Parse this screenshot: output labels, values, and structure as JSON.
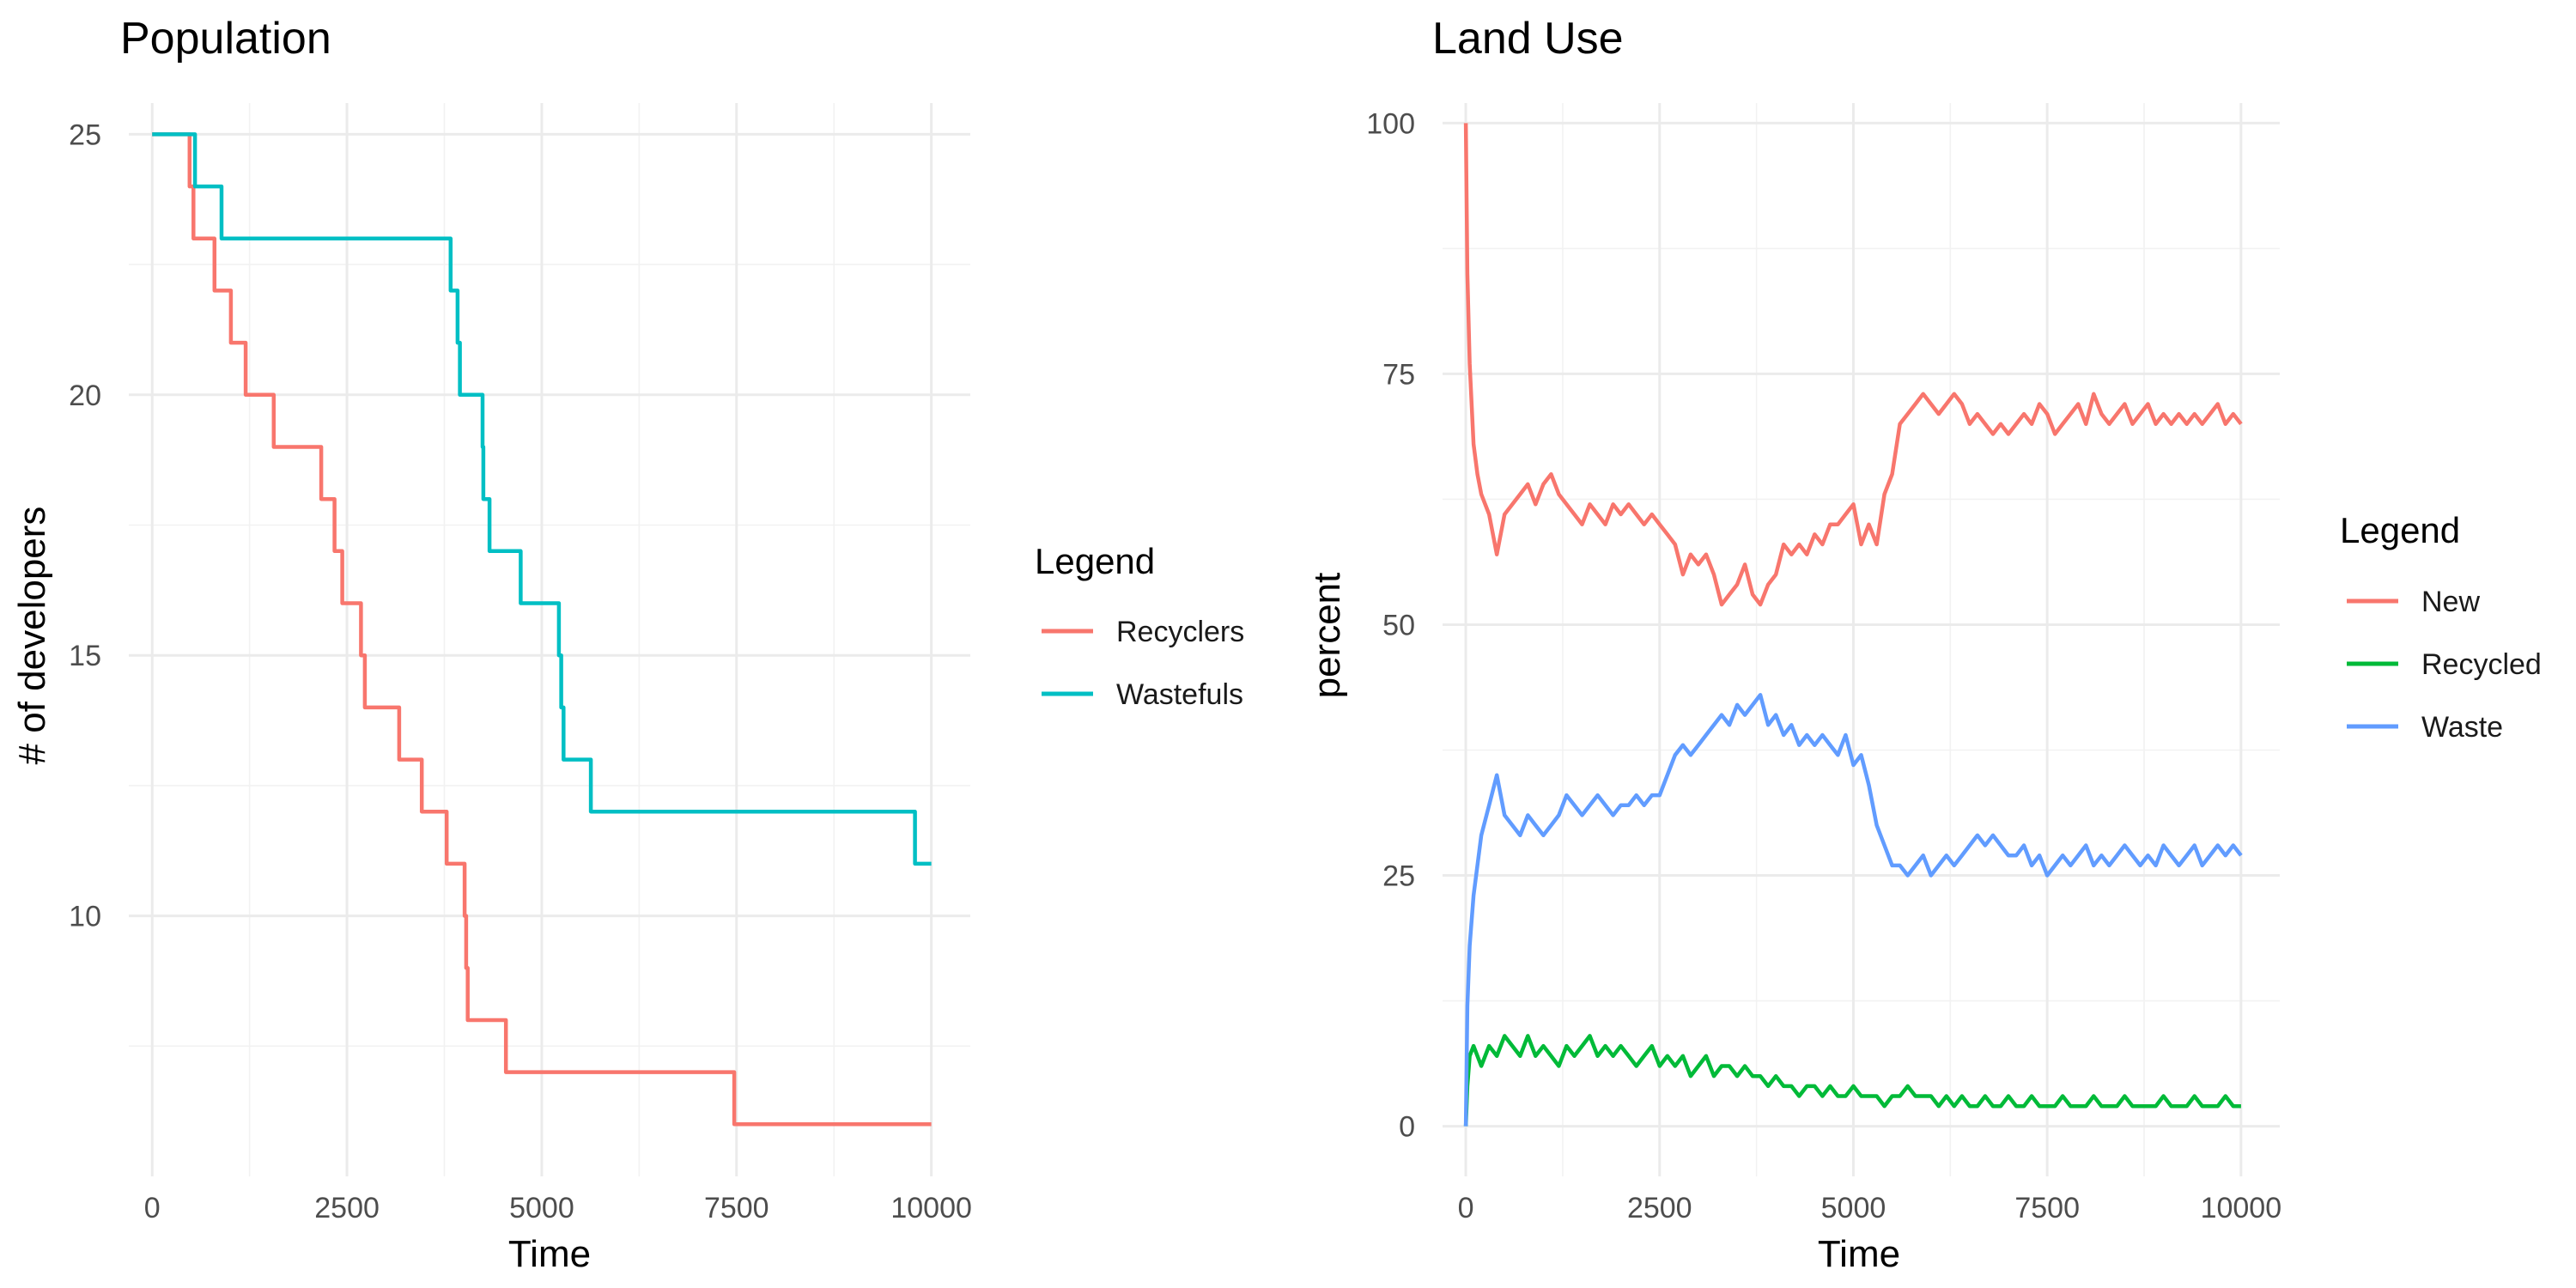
{
  "chart_data": [
    {
      "type": "line",
      "title": "Population",
      "xlabel": "Time",
      "ylabel": "# of developers",
      "xlim": [
        -300,
        10500
      ],
      "ylim": [
        5,
        25.6
      ],
      "x_ticks": [
        0,
        2500,
        5000,
        7500,
        10000
      ],
      "x_tick_labels": [
        "0",
        "2500",
        "5000",
        "7500",
        "10000"
      ],
      "y_ticks": [
        10,
        15,
        20,
        25
      ],
      "y_tick_labels": [
        "10",
        "15",
        "20",
        "25"
      ],
      "grid": true,
      "legend": {
        "title": "Legend",
        "position": "right"
      },
      "series": [
        {
          "name": "Recyclers",
          "color": "#F8766D",
          "step": true,
          "points": [
            [
              0,
              25
            ],
            [
              480,
              25
            ],
            [
              480,
              24
            ],
            [
              530,
              24
            ],
            [
              530,
              23
            ],
            [
              800,
              23
            ],
            [
              800,
              22
            ],
            [
              1010,
              22
            ],
            [
              1010,
              21
            ],
            [
              1200,
              21
            ],
            [
              1200,
              20
            ],
            [
              1560,
              20
            ],
            [
              1560,
              19
            ],
            [
              2170,
              19
            ],
            [
              2170,
              18
            ],
            [
              2340,
              18
            ],
            [
              2340,
              17
            ],
            [
              2440,
              17
            ],
            [
              2440,
              16
            ],
            [
              2680,
              16
            ],
            [
              2680,
              15
            ],
            [
              2730,
              15
            ],
            [
              2730,
              14
            ],
            [
              3170,
              14
            ],
            [
              3170,
              13
            ],
            [
              3460,
              13
            ],
            [
              3460,
              12
            ],
            [
              3780,
              12
            ],
            [
              3780,
              11
            ],
            [
              4010,
              11
            ],
            [
              4010,
              10
            ],
            [
              4030,
              10
            ],
            [
              4030,
              9
            ],
            [
              4050,
              9
            ],
            [
              4050,
              8
            ],
            [
              4540,
              8
            ],
            [
              4540,
              7
            ],
            [
              7470,
              7
            ],
            [
              7470,
              6
            ],
            [
              10000,
              6
            ]
          ]
        },
        {
          "name": "Wastefuls",
          "color": "#00BFC4",
          "step": true,
          "points": [
            [
              0,
              25
            ],
            [
              550,
              25
            ],
            [
              550,
              24
            ],
            [
              890,
              24
            ],
            [
              890,
              23
            ],
            [
              3830,
              23
            ],
            [
              3830,
              22
            ],
            [
              3920,
              22
            ],
            [
              3920,
              21
            ],
            [
              3950,
              21
            ],
            [
              3950,
              20
            ],
            [
              4240,
              20
            ],
            [
              4240,
              19
            ],
            [
              4250,
              19
            ],
            [
              4250,
              18
            ],
            [
              4330,
              18
            ],
            [
              4330,
              17
            ],
            [
              4730,
              17
            ],
            [
              4730,
              16
            ],
            [
              5220,
              16
            ],
            [
              5220,
              15
            ],
            [
              5250,
              15
            ],
            [
              5250,
              14
            ],
            [
              5280,
              14
            ],
            [
              5280,
              13
            ],
            [
              5630,
              13
            ],
            [
              5630,
              12
            ],
            [
              9790,
              12
            ],
            [
              9790,
              11
            ],
            [
              10000,
              11
            ]
          ]
        }
      ]
    },
    {
      "type": "line",
      "title": "Land Use",
      "xlabel": "Time",
      "ylabel": "percent",
      "xlim": [
        -300,
        10500
      ],
      "ylim": [
        -5,
        102
      ],
      "x_ticks": [
        0,
        2500,
        5000,
        7500,
        10000
      ],
      "x_tick_labels": [
        "0",
        "2500",
        "5000",
        "7500",
        "10000"
      ],
      "y_ticks": [
        0,
        25,
        50,
        75,
        100
      ],
      "y_tick_labels": [
        "0",
        "25",
        "50",
        "75",
        "100"
      ],
      "grid": true,
      "legend": {
        "title": "Legend",
        "position": "right"
      },
      "series": [
        {
          "name": "New",
          "color": "#F8766D",
          "x": [
            0,
            20,
            50,
            100,
            150,
            200,
            300,
            400,
            500,
            600,
            700,
            800,
            900,
            1000,
            1100,
            1200,
            1300,
            1400,
            1500,
            1600,
            1700,
            1800,
            1900,
            2000,
            2100,
            2200,
            2300,
            2400,
            2500,
            2600,
            2700,
            2800,
            2900,
            3000,
            3100,
            3200,
            3300,
            3400,
            3500,
            3600,
            3700,
            3800,
            3900,
            4000,
            4100,
            4200,
            4300,
            4400,
            4500,
            4600,
            4700,
            4800,
            4900,
            5000,
            5100,
            5200,
            5300,
            5400,
            5500,
            5600,
            5700,
            5800,
            5900,
            6000,
            6100,
            6200,
            6300,
            6400,
            6500,
            6600,
            6700,
            6800,
            6900,
            7000,
            7100,
            7200,
            7300,
            7400,
            7500,
            7600,
            7700,
            7800,
            7900,
            8000,
            8100,
            8200,
            8300,
            8400,
            8500,
            8600,
            8700,
            8800,
            8900,
            9000,
            9100,
            9200,
            9300,
            9400,
            9500,
            9600,
            9700,
            9800,
            9900,
            10000
          ],
          "values": [
            100,
            85,
            76,
            68,
            65,
            63,
            61,
            57,
            61,
            62,
            63,
            64,
            62,
            64,
            65,
            63,
            62,
            61,
            60,
            62,
            61,
            60,
            62,
            61,
            62,
            61,
            60,
            61,
            60,
            59,
            58,
            55,
            57,
            56,
            57,
            55,
            52,
            53,
            54,
            56,
            53,
            52,
            54,
            55,
            58,
            57,
            58,
            57,
            59,
            58,
            60,
            60,
            61,
            62,
            58,
            60,
            58,
            63,
            65,
            70,
            71,
            72,
            73,
            72,
            71,
            72,
            73,
            72,
            70,
            71,
            70,
            69,
            70,
            69,
            70,
            71,
            70,
            72,
            71,
            69,
            70,
            71,
            72,
            70,
            73,
            71,
            70,
            71,
            72,
            70,
            71,
            72,
            70,
            71,
            70,
            71,
            70,
            71,
            70,
            71,
            72,
            70,
            71,
            70
          ]
        },
        {
          "name": "Recycled",
          "color": "#00BA38",
          "x": [
            0,
            20,
            50,
            100,
            200,
            300,
            400,
            500,
            600,
            700,
            800,
            900,
            1000,
            1100,
            1200,
            1300,
            1400,
            1500,
            1600,
            1700,
            1800,
            1900,
            2000,
            2100,
            2200,
            2300,
            2400,
            2500,
            2600,
            2700,
            2800,
            2900,
            3000,
            3100,
            3200,
            3300,
            3400,
            3500,
            3600,
            3700,
            3800,
            3900,
            4000,
            4100,
            4200,
            4300,
            4400,
            4500,
            4600,
            4700,
            4800,
            4900,
            5000,
            5100,
            5200,
            5300,
            5400,
            5500,
            5600,
            5700,
            5800,
            5900,
            6000,
            6100,
            6200,
            6300,
            6400,
            6500,
            6600,
            6700,
            6800,
            6900,
            7000,
            7100,
            7200,
            7300,
            7400,
            7500,
            7600,
            7700,
            7800,
            7900,
            8000,
            8100,
            8200,
            8300,
            8400,
            8500,
            8600,
            8700,
            8800,
            8900,
            9000,
            9100,
            9200,
            9300,
            9400,
            9500,
            9600,
            9700,
            9800,
            9900,
            10000
          ],
          "values": [
            0,
            4,
            7,
            8,
            6,
            8,
            7,
            9,
            8,
            7,
            9,
            7,
            8,
            7,
            6,
            8,
            7,
            8,
            9,
            7,
            8,
            7,
            8,
            7,
            6,
            7,
            8,
            6,
            7,
            6,
            7,
            5,
            6,
            7,
            5,
            6,
            6,
            5,
            6,
            5,
            5,
            4,
            5,
            4,
            4,
            3,
            4,
            4,
            3,
            4,
            3,
            3,
            4,
            3,
            3,
            3,
            2,
            3,
            3,
            4,
            3,
            3,
            3,
            2,
            3,
            2,
            3,
            2,
            2,
            3,
            2,
            2,
            3,
            2,
            2,
            3,
            2,
            2,
            2,
            3,
            2,
            2,
            2,
            3,
            2,
            2,
            2,
            3,
            2,
            2,
            2,
            2,
            3,
            2,
            2,
            2,
            3,
            2,
            2,
            2,
            3,
            2,
            2
          ]
        },
        {
          "name": "Waste",
          "color": "#619CFF",
          "x": [
            0,
            20,
            50,
            100,
            150,
            200,
            300,
            400,
            500,
            600,
            700,
            800,
            900,
            1000,
            1100,
            1200,
            1300,
            1400,
            1500,
            1600,
            1700,
            1800,
            1900,
            2000,
            2100,
            2200,
            2300,
            2400,
            2500,
            2600,
            2700,
            2800,
            2900,
            3000,
            3100,
            3200,
            3300,
            3400,
            3500,
            3600,
            3700,
            3800,
            3900,
            4000,
            4100,
            4200,
            4300,
            4400,
            4500,
            4600,
            4700,
            4800,
            4900,
            5000,
            5100,
            5200,
            5300,
            5400,
            5500,
            5600,
            5700,
            5800,
            5900,
            6000,
            6100,
            6200,
            6300,
            6400,
            6500,
            6600,
            6700,
            6800,
            6900,
            7000,
            7100,
            7200,
            7300,
            7400,
            7500,
            7600,
            7700,
            7800,
            7900,
            8000,
            8100,
            8200,
            8300,
            8400,
            8500,
            8600,
            8700,
            8800,
            8900,
            9000,
            9100,
            9200,
            9300,
            9400,
            9500,
            9600,
            9700,
            9800,
            9900,
            10000
          ],
          "values": [
            0,
            12,
            18,
            23,
            26,
            29,
            32,
            35,
            31,
            30,
            29,
            31,
            30,
            29,
            30,
            31,
            33,
            32,
            31,
            32,
            33,
            32,
            31,
            32,
            32,
            33,
            32,
            33,
            33,
            35,
            37,
            38,
            37,
            38,
            39,
            40,
            41,
            40,
            42,
            41,
            42,
            43,
            40,
            41,
            39,
            40,
            38,
            39,
            38,
            39,
            38,
            37,
            39,
            36,
            37,
            34,
            30,
            28,
            26,
            26,
            25,
            26,
            27,
            25,
            26,
            27,
            26,
            27,
            28,
            29,
            28,
            29,
            28,
            27,
            27,
            28,
            26,
            27,
            25,
            26,
            27,
            26,
            27,
            28,
            26,
            27,
            26,
            27,
            28,
            27,
            26,
            27,
            26,
            28,
            27,
            26,
            27,
            28,
            26,
            27,
            28,
            27,
            28,
            27
          ]
        }
      ]
    }
  ]
}
